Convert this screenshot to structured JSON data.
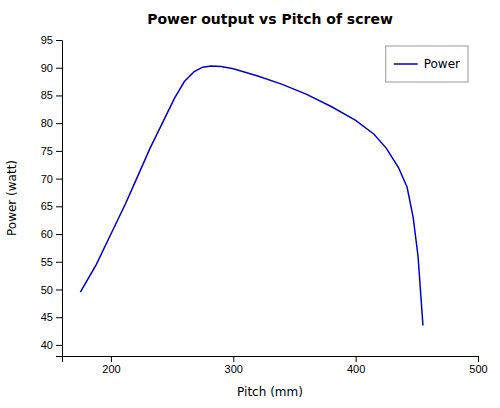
{
  "chart_data": {
    "type": "line",
    "title": "Power output vs Pitch of screw",
    "xlabel": "Pitch (mm)",
    "ylabel": "Power (watt)",
    "x": [
      175,
      188,
      200,
      212,
      222,
      232,
      242,
      252,
      260,
      268,
      275,
      282,
      290,
      300,
      320,
      340,
      360,
      380,
      400,
      415,
      425,
      435,
      442,
      447,
      451,
      455
    ],
    "series": [
      {
        "name": "Power",
        "color": "#0000CC",
        "values": [
          49.5,
          54.5,
          60.0,
          65.5,
          70.5,
          75.5,
          80.0,
          84.5,
          87.5,
          89.3,
          90.1,
          90.3,
          90.2,
          89.8,
          88.5,
          87.0,
          85.2,
          83.0,
          80.5,
          78.0,
          75.5,
          72.0,
          68.5,
          63.0,
          56.0,
          43.5
        ]
      }
    ],
    "xlim": [
      160,
      500
    ],
    "ylim": [
      38,
      95
    ],
    "xticks": [
      200,
      300,
      400,
      500
    ],
    "yticks": [
      40,
      45,
      50,
      55,
      60,
      65,
      70,
      75,
      80,
      85,
      90,
      95
    ],
    "legend": "upper right",
    "grid": false
  }
}
